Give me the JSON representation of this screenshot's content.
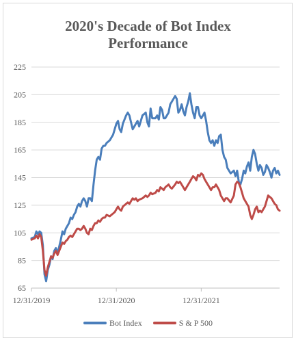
{
  "chart_data": {
    "type": "line",
    "title": "2020's Decade of Bot Index Performance",
    "title_lines": [
      "2020's Decade of Bot Index",
      "Performance"
    ],
    "xlabel": "",
    "ylabel": "",
    "ylim": [
      65,
      225
    ],
    "y_ticks": [
      65,
      85,
      105,
      125,
      145,
      165,
      185,
      205,
      225
    ],
    "x_ticks": [
      "12/31/2019",
      "12/31/2020",
      "12/31/2021"
    ],
    "x_range_weeks": [
      0,
      152
    ],
    "x_tick_weeks": [
      0,
      52,
      104
    ],
    "grid": "horizontal",
    "legend": "bottom",
    "series": [
      {
        "name": "Bot Index",
        "color": "#4a7ebb",
        "x": [
          0,
          2,
          3,
          4,
          5,
          6,
          7,
          8,
          9,
          10,
          11,
          12,
          13,
          14,
          15,
          16,
          18,
          19,
          20,
          21,
          22,
          23,
          24,
          25,
          26,
          27,
          28,
          29,
          30,
          31,
          32,
          33,
          34,
          35,
          36,
          37,
          38,
          39,
          40,
          41,
          42,
          43,
          44,
          45,
          46,
          48,
          50,
          51,
          52,
          53,
          54,
          55,
          56,
          58,
          59,
          60,
          61,
          62,
          63,
          64,
          65,
          66,
          68,
          70,
          71,
          72,
          73,
          74,
          76,
          77,
          78,
          79,
          80,
          81,
          82,
          84,
          85,
          86,
          88,
          89,
          90,
          91,
          92,
          93,
          94,
          95,
          96,
          97,
          98,
          99,
          100,
          101,
          102,
          103,
          104,
          105,
          106,
          107,
          108,
          109,
          110,
          111,
          112,
          113,
          114,
          115,
          116,
          117,
          118,
          119,
          120,
          122,
          124,
          125,
          126,
          127,
          128,
          129,
          130,
          131,
          132,
          133,
          134,
          135,
          136,
          137,
          138,
          139,
          140,
          141,
          142,
          143,
          144,
          145,
          146,
          147,
          148,
          149,
          150,
          151,
          152
        ],
        "values": [
          101,
          102,
          106,
          104,
          106,
          105,
          96,
          75,
          70,
          78,
          82,
          88,
          86,
          92,
          94,
          90,
          100,
          106,
          104,
          108,
          110,
          112,
          116,
          115,
          118,
          120,
          124,
          126,
          124,
          128,
          130,
          128,
          124,
          130,
          130,
          128,
          140,
          150,
          158,
          160,
          158,
          166,
          168,
          168,
          170,
          172,
          176,
          180,
          184,
          186,
          180,
          178,
          184,
          190,
          192,
          190,
          185,
          180,
          182,
          184,
          186,
          182,
          190,
          192,
          185,
          182,
          195,
          188,
          188,
          190,
          187,
          196,
          194,
          188,
          188,
          192,
          198,
          200,
          204,
          202,
          192,
          194,
          198,
          193,
          190,
          196,
          200,
          206,
          198,
          192,
          188,
          196,
          196,
          190,
          188,
          190,
          192,
          186,
          178,
          172,
          170,
          172,
          168,
          172,
          170,
          175,
          176,
          165,
          160,
          158,
          152,
          148,
          150,
          146,
          150,
          142,
          140,
          144,
          150,
          148,
          153,
          156,
          150,
          160,
          165,
          162,
          155,
          150,
          154,
          152,
          147,
          149,
          154,
          152,
          149,
          145,
          150,
          152,
          148,
          150,
          147
        ]
      },
      {
        "name": "S & P 500",
        "color": "#be4b48",
        "x": [
          0,
          2,
          3,
          4,
          5,
          6,
          7,
          8,
          9,
          10,
          11,
          12,
          13,
          14,
          15,
          16,
          18,
          19,
          20,
          21,
          22,
          23,
          24,
          25,
          26,
          27,
          28,
          29,
          30,
          31,
          32,
          33,
          34,
          35,
          36,
          37,
          38,
          39,
          40,
          41,
          42,
          43,
          44,
          45,
          46,
          48,
          50,
          51,
          52,
          53,
          54,
          55,
          56,
          58,
          59,
          60,
          61,
          62,
          63,
          64,
          65,
          66,
          68,
          70,
          71,
          72,
          73,
          74,
          76,
          77,
          78,
          79,
          80,
          81,
          82,
          84,
          85,
          86,
          88,
          89,
          90,
          91,
          92,
          93,
          94,
          95,
          96,
          97,
          98,
          99,
          100,
          101,
          102,
          103,
          104,
          105,
          106,
          107,
          108,
          109,
          110,
          111,
          112,
          113,
          114,
          115,
          116,
          117,
          118,
          119,
          120,
          122,
          124,
          125,
          126,
          127,
          128,
          129,
          130,
          131,
          132,
          133,
          134,
          135,
          136,
          137,
          138,
          139,
          140,
          141,
          142,
          143,
          144,
          145,
          146,
          147,
          148,
          149,
          150,
          151,
          152
        ],
        "values": [
          100,
          101,
          103,
          101,
          104,
          102,
          92,
          78,
          74,
          80,
          84,
          88,
          87,
          90,
          92,
          89,
          95,
          98,
          97,
          99,
          100,
          102,
          103,
          102,
          104,
          106,
          108,
          108,
          107,
          108,
          110,
          108,
          105,
          104,
          108,
          107,
          110,
          112,
          112,
          114,
          113,
          115,
          116,
          116,
          118,
          117,
          119,
          120,
          122,
          124,
          122,
          121,
          124,
          126,
          127,
          126,
          128,
          130,
          129,
          130,
          128,
          129,
          130,
          132,
          131,
          132,
          134,
          133,
          134,
          136,
          135,
          138,
          137,
          136,
          138,
          140,
          138,
          137,
          140,
          142,
          141,
          142,
          140,
          138,
          136,
          138,
          140,
          142,
          144,
          146,
          145,
          143,
          147,
          146,
          148,
          147,
          144,
          142,
          140,
          138,
          136,
          138,
          138,
          140,
          138,
          136,
          132,
          130,
          128,
          130,
          130,
          127,
          132,
          140,
          142,
          141,
          138,
          134,
          130,
          128,
          126,
          124,
          118,
          115,
          118,
          122,
          124,
          120,
          121,
          120,
          122,
          124,
          128,
          132,
          131,
          130,
          128,
          126,
          125,
          122,
          121
        ]
      }
    ]
  }
}
